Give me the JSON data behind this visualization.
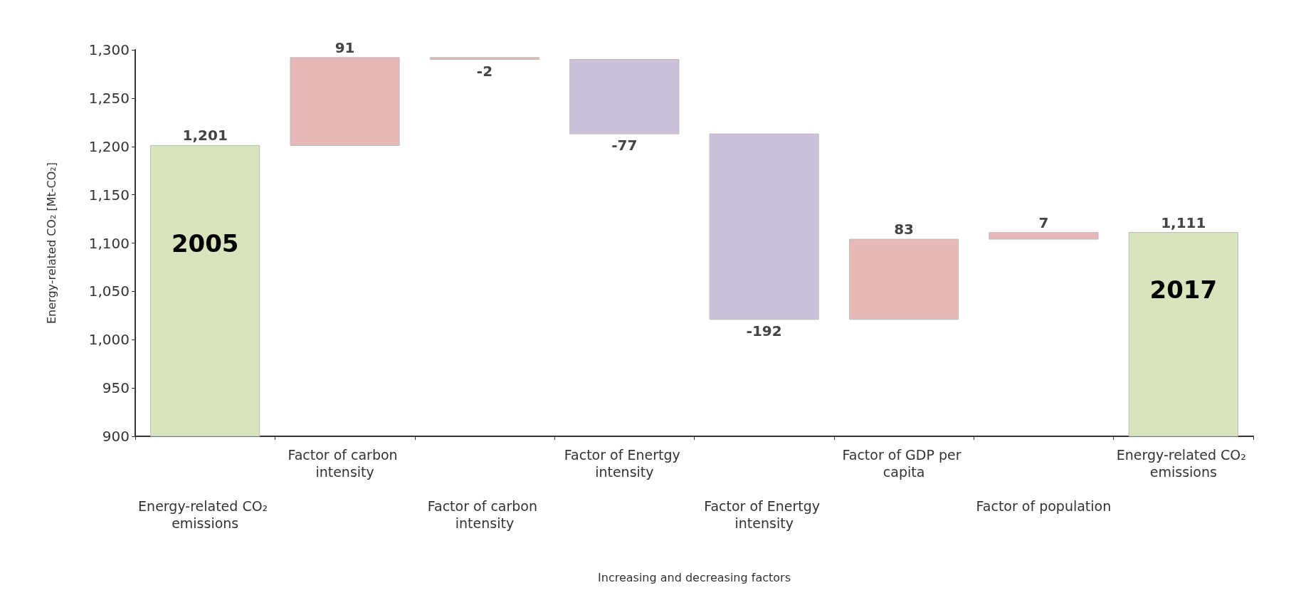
{
  "chart_data": {
    "type": "bar",
    "xlabel": "Increasing and decreasing factors",
    "ylabel": "Energy-related CO₂ [Mt-CO₂]",
    "categories": [
      "Energy-related CO₂ emissions",
      "Factor of carbon intensity",
      "Factor of carbon intensity",
      "Factor of Enertgy intensity",
      "Factor of Enertgy intensity",
      "Factor of GDP per capita",
      "Factor of population",
      "Energy-related CO₂ emissions"
    ],
    "values": [
      1201,
      91,
      -2,
      -77,
      -192,
      83,
      7,
      1111
    ],
    "base": [
      0,
      1201,
      1292,
      1290,
      1213,
      1021,
      1104,
      0
    ],
    "colors": [
      "#d7e4bd",
      "#e6b9b8",
      "#e6b9b8",
      "#ccc1da",
      "#ccc1da",
      "#e6b9b8",
      "#e6b9b8",
      "#d7e4bd"
    ],
    "value_labels": [
      "1,201",
      "91",
      "-2",
      "-77",
      "-192",
      "83",
      "7",
      "1,111"
    ],
    "ylim": [
      900,
      1300
    ],
    "yticks": [
      900,
      950,
      {
        "value": 1000,
        "label": "1,000"
      },
      {
        "value": 1050,
        "label": "1,050"
      },
      {
        "value": 1100,
        "label": "1,100"
      },
      {
        "value": 1150,
        "label": "1,150"
      },
      {
        "value": 1200,
        "label": "1,200"
      },
      {
        "value": 1250,
        "label": "1,250"
      },
      {
        "value": 1300,
        "label": "1,300"
      }
    ],
    "annotations": [
      "2005",
      "2017"
    ],
    "grid": false
  }
}
